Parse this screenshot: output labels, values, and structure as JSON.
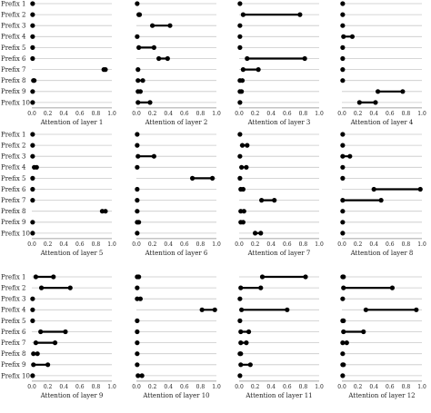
{
  "chart_data": {
    "type": "dumbbell",
    "row_labels": [
      "Prefix 1",
      "Prefix 2",
      "Prefix 3",
      "Prefix 4",
      "Prefix 5",
      "Prefix 6",
      "Prefix 7",
      "Prefix 8",
      "Prefix 9",
      "Prefix 10"
    ],
    "xlim": [
      0,
      1.0
    ],
    "x_ticks": [
      "0.0",
      "0.2",
      "0.4",
      "0.6",
      "0.8",
      "1.0"
    ],
    "panels": [
      {
        "xlabel": "Attention of layer 1",
        "ranges": [
          [
            0.01,
            0.01
          ],
          [
            0.01,
            0.01
          ],
          [
            0.01,
            0.01
          ],
          [
            0.01,
            0.01
          ],
          [
            0.01,
            0.01
          ],
          [
            0.01,
            0.01
          ],
          [
            0.9,
            0.92
          ],
          [
            0.02,
            0.03
          ],
          [
            0.01,
            0.01
          ],
          [
            0.01,
            0.01
          ]
        ]
      },
      {
        "xlabel": "Attention of layer 2",
        "ranges": [
          [
            0.01,
            0.01
          ],
          [
            0.03,
            0.04
          ],
          [
            0.2,
            0.42
          ],
          [
            0.01,
            0.01
          ],
          [
            0.03,
            0.22
          ],
          [
            0.28,
            0.39
          ],
          [
            0.02,
            0.02
          ],
          [
            0.02,
            0.08
          ],
          [
            0.02,
            0.05
          ],
          [
            0.02,
            0.17
          ]
        ]
      },
      {
        "xlabel": "Attention of layer 3",
        "ranges": [
          [
            0.01,
            0.01
          ],
          [
            0.05,
            0.76
          ],
          [
            0.01,
            0.01
          ],
          [
            0.01,
            0.01
          ],
          [
            0.01,
            0.01
          ],
          [
            0.1,
            0.82
          ],
          [
            0.05,
            0.24
          ],
          [
            0.01,
            0.04
          ],
          [
            0.01,
            0.03
          ],
          [
            0.01,
            0.01
          ]
        ]
      },
      {
        "xlabel": "Attention of layer 4",
        "ranges": [
          [
            0.01,
            0.01
          ],
          [
            0.01,
            0.01
          ],
          [
            0.01,
            0.01
          ],
          [
            0.02,
            0.13
          ],
          [
            0.01,
            0.01
          ],
          [
            0.01,
            0.01
          ],
          [
            0.01,
            0.01
          ],
          [
            0.01,
            0.01
          ],
          [
            0.45,
            0.76
          ],
          [
            0.22,
            0.42
          ]
        ]
      },
      {
        "xlabel": "Attention of layer 5",
        "ranges": [
          [
            0.01,
            0.01
          ],
          [
            0.01,
            0.01
          ],
          [
            0.01,
            0.01
          ],
          [
            0.03,
            0.06
          ],
          [
            0.01,
            0.01
          ],
          [
            0.01,
            0.01
          ],
          [
            0.01,
            0.01
          ],
          [
            0.88,
            0.92
          ],
          [
            0.01,
            0.01
          ],
          [
            0.01,
            0.01
          ]
        ]
      },
      {
        "xlabel": "Attention of layer 6",
        "ranges": [
          [
            0.01,
            0.01
          ],
          [
            0.01,
            0.01
          ],
          [
            0.02,
            0.22
          ],
          [
            0.01,
            0.01
          ],
          [
            0.7,
            0.95
          ],
          [
            0.01,
            0.01
          ],
          [
            0.01,
            0.01
          ],
          [
            0.01,
            0.01
          ],
          [
            0.01,
            0.03
          ],
          [
            0.01,
            0.01
          ]
        ]
      },
      {
        "xlabel": "Attention of layer 7",
        "ranges": [
          [
            0.01,
            0.01
          ],
          [
            0.04,
            0.1
          ],
          [
            0.01,
            0.01
          ],
          [
            0.03,
            0.09
          ],
          [
            0.01,
            0.01
          ],
          [
            0.02,
            0.05
          ],
          [
            0.28,
            0.44
          ],
          [
            0.02,
            0.06
          ],
          [
            0.02,
            0.05
          ],
          [
            0.2,
            0.27
          ]
        ]
      },
      {
        "xlabel": "Attention of layer 8",
        "ranges": [
          [
            0.01,
            0.01
          ],
          [
            0.01,
            0.01
          ],
          [
            0.01,
            0.1
          ],
          [
            0.01,
            0.01
          ],
          [
            0.01,
            0.01
          ],
          [
            0.4,
            0.98
          ],
          [
            0.01,
            0.49
          ],
          [
            0.01,
            0.01
          ],
          [
            0.01,
            0.01
          ],
          [
            0.01,
            0.01
          ]
        ]
      },
      {
        "xlabel": "Attention of layer 9",
        "ranges": [
          [
            0.05,
            0.27
          ],
          [
            0.12,
            0.48
          ],
          [
            0.01,
            0.01
          ],
          [
            0.01,
            0.01
          ],
          [
            0.01,
            0.01
          ],
          [
            0.11,
            0.42
          ],
          [
            0.05,
            0.29
          ],
          [
            0.02,
            0.07
          ],
          [
            0.02,
            0.2
          ],
          [
            0.01,
            0.01
          ]
        ]
      },
      {
        "xlabel": "Attention of layer 10",
        "ranges": [
          [
            0.01,
            0.03
          ],
          [
            0.01,
            0.01
          ],
          [
            0.01,
            0.05
          ],
          [
            0.82,
            0.98
          ],
          [
            0.01,
            0.01
          ],
          [
            0.01,
            0.01
          ],
          [
            0.01,
            0.01
          ],
          [
            0.01,
            0.01
          ],
          [
            0.01,
            0.01
          ],
          [
            0.02,
            0.07
          ]
        ]
      },
      {
        "xlabel": "Attention of layer 11",
        "ranges": [
          [
            0.29,
            0.83
          ],
          [
            0.02,
            0.27
          ],
          [
            0.01,
            0.01
          ],
          [
            0.03,
            0.6
          ],
          [
            0.01,
            0.01
          ],
          [
            0.02,
            0.12
          ],
          [
            0.02,
            0.09
          ],
          [
            0.01,
            0.02
          ],
          [
            0.02,
            0.14
          ],
          [
            0.01,
            0.01
          ]
        ]
      },
      {
        "xlabel": "Attention of layer 12",
        "ranges": [
          [
            0.01,
            0.02
          ],
          [
            0.02,
            0.63
          ],
          [
            0.01,
            0.01
          ],
          [
            0.3,
            0.93
          ],
          [
            0.01,
            0.02
          ],
          [
            0.02,
            0.27
          ],
          [
            0.01,
            0.06
          ],
          [
            0.01,
            0.01
          ],
          [
            0.01,
            0.02
          ],
          [
            0.01,
            0.01
          ]
        ]
      }
    ]
  }
}
